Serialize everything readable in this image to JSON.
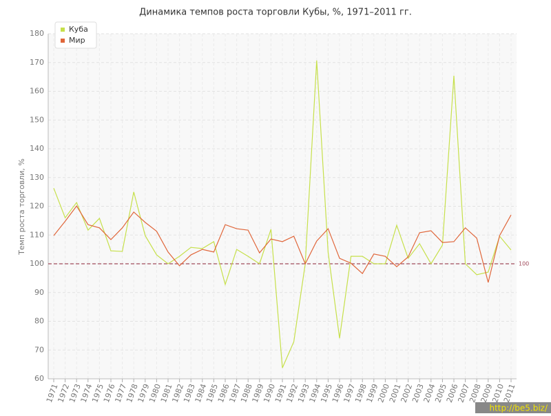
{
  "chart_data": {
    "type": "line",
    "title": "Динамика темпов роста торговли Кубы, %, 1971–2011 гг.",
    "y_label": "Темп роста торговли, %",
    "x": [
      1971,
      1972,
      1973,
      1974,
      1975,
      1976,
      1977,
      1978,
      1979,
      1980,
      1981,
      1982,
      1983,
      1984,
      1985,
      1986,
      1987,
      1988,
      1989,
      1990,
      1991,
      1992,
      1993,
      1994,
      1995,
      1996,
      1997,
      1998,
      1999,
      2000,
      2001,
      2002,
      2003,
      2004,
      2005,
      2006,
      2007,
      2008,
      2009,
      2010,
      2011
    ],
    "xlim": [
      1971,
      2011
    ],
    "series": [
      {
        "name": "Куба",
        "color": "#c6e04a",
        "values": [
          126.3,
          116,
          121.3,
          111.7,
          115.8,
          104.5,
          104.3,
          125,
          109.8,
          103.1,
          100,
          102.6,
          105.7,
          105.3,
          107.7,
          92.8,
          105,
          102.6,
          100,
          112,
          63.8,
          72.9,
          100,
          170.7,
          104,
          74.1,
          102.6,
          102.6,
          100,
          100,
          113.4,
          101.9,
          107,
          100,
          106.5,
          165.4,
          100,
          96.2,
          97.1,
          109.6,
          104.8
        ]
      },
      {
        "name": "Мир",
        "color": "#e0663a",
        "values": [
          109.8,
          114.8,
          120.1,
          113.6,
          112.5,
          108.4,
          112.5,
          118,
          114.4,
          111.3,
          104.1,
          99.3,
          103.1,
          105,
          104.1,
          113.6,
          112.2,
          111.7,
          103.8,
          108.6,
          107.7,
          109.6,
          100,
          107.9,
          112.2,
          101.9,
          100.2,
          96.6,
          103.4,
          102.6,
          99,
          102.4,
          110.8,
          111.5,
          107.4,
          107.7,
          112.5,
          108.9,
          93.5,
          109.8,
          117
        ]
      }
    ],
    "ylim": [
      60,
      180
    ],
    "yticks": [
      60,
      70,
      80,
      90,
      100,
      110,
      120,
      130,
      140,
      150,
      160,
      170,
      180
    ],
    "grid": true,
    "reference_line": {
      "value": 100,
      "color": "#a04a5a"
    },
    "legend": "top-left",
    "watermark": "http://be5.biz/"
  }
}
